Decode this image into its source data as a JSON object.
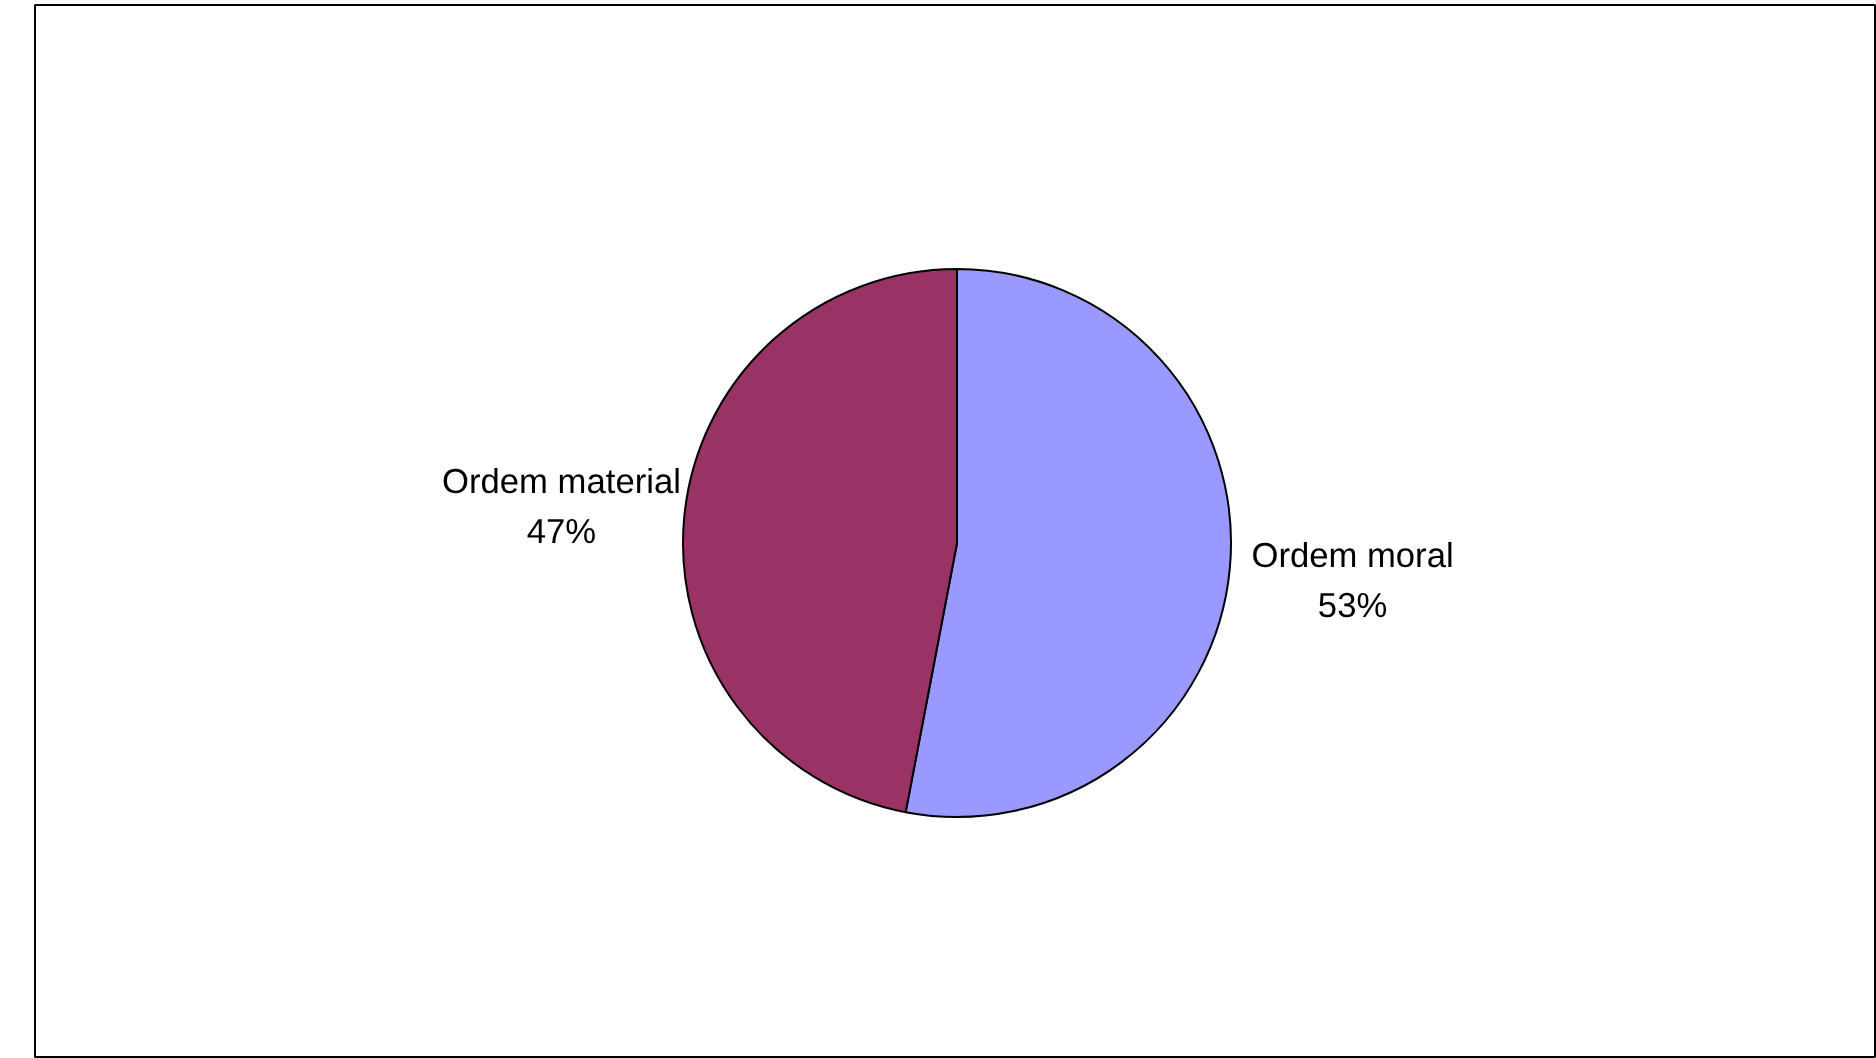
{
  "chart_data": {
    "type": "pie",
    "categories": [
      "Ordem moral",
      "Ordem material"
    ],
    "values": [
      53,
      47
    ],
    "colors": [
      "#9999ff",
      "#993366"
    ],
    "value_labels": [
      "53%",
      "47%"
    ]
  }
}
